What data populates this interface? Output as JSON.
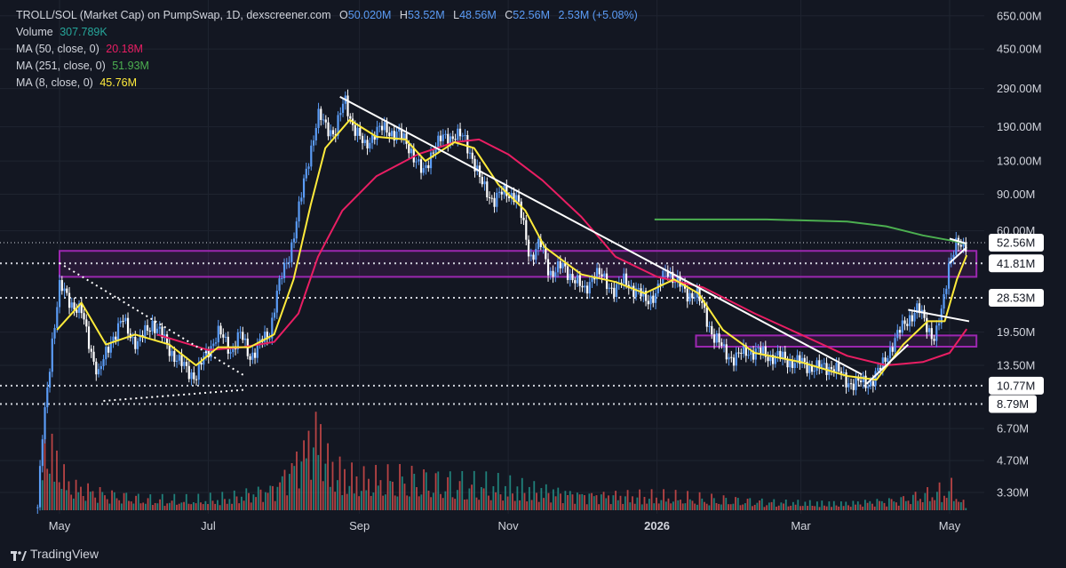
{
  "legend": {
    "title": "TROLL/SOL (Market Cap) on PumpSwap, 1D, dexscreener.com",
    "ohlc": {
      "o_label": "O",
      "o": "50.020M",
      "h_label": "H",
      "h": "53.52M",
      "l_label": "L",
      "l": "48.56M",
      "c_label": "C",
      "c": "52.56M",
      "chg": "2.53M (+5.08%)"
    },
    "volume_label": "Volume",
    "volume": "307.789K",
    "ma50_label": "MA (50, close, 0)",
    "ma50": "20.18M",
    "ma251_label": "MA (251, close, 0)",
    "ma251": "51.93M",
    "ma8_label": "MA (8, close, 0)",
    "ma8": "45.76M"
  },
  "colors": {
    "background": "#131722",
    "up": "#5b9cf6",
    "down": "#ffffff",
    "ma50": "#e91e63",
    "ma251": "#4caf50",
    "ma8": "#ffeb3b",
    "zone": "#9c27b0",
    "volume_up": "#26a69a",
    "volume_down": "#ef5350",
    "ohlc_value": "#5b9cf6"
  },
  "footer": {
    "brand": "TradingView"
  },
  "chart_data": {
    "type": "candlestick",
    "title": "TROLL/SOL (Market Cap) on PumpSwap, 1D, dexscreener.com",
    "y_scale": "log",
    "y_axis_ticks": [
      "650.00M",
      "450.00M",
      "290.00M",
      "190.00M",
      "130.00M",
      "90.00M",
      "60.00M",
      "19.50M",
      "13.50M",
      "6.70M",
      "4.70M",
      "3.30M"
    ],
    "y_axis_tick_values": [
      650,
      450,
      290,
      190,
      130,
      90,
      60,
      19.5,
      13.5,
      6.7,
      4.7,
      3.3
    ],
    "x_axis_labels": [
      {
        "label": "May",
        "date": "2025-05-01"
      },
      {
        "label": "Jul",
        "date": "2025-07-01"
      },
      {
        "label": "Sep",
        "date": "2025-09-01"
      },
      {
        "label": "Nov",
        "date": "2025-11-01"
      },
      {
        "label": "2026",
        "date": "2026-01-01",
        "bold": true
      },
      {
        "label": "Mar",
        "date": "2026-03-01"
      },
      {
        "label": "May",
        "date": "2026-05-01"
      }
    ],
    "price_tags": [
      {
        "label": "52.56M",
        "value": 52.56,
        "kind": "last"
      },
      {
        "label": "41.81M",
        "value": 41.81,
        "kind": "level"
      },
      {
        "label": "28.53M",
        "value": 28.53,
        "kind": "level"
      },
      {
        "label": "10.77M",
        "value": 10.77,
        "kind": "level"
      },
      {
        "label": "8.79M",
        "value": 8.79,
        "kind": "level"
      }
    ],
    "zones": [
      {
        "from": "2025-05-01",
        "to": "2026-05-12",
        "low": 36.0,
        "high": 48.0
      },
      {
        "from": "2026-01-17",
        "to": "2026-05-12",
        "low": 16.6,
        "high": 18.8
      }
    ],
    "price_path": [
      {
        "date": "2025-04-22",
        "value": 2.8
      },
      {
        "date": "2025-04-24",
        "value": 6.0
      },
      {
        "date": "2025-04-28",
        "value": 18.0
      },
      {
        "date": "2025-05-01",
        "value": 32.0
      },
      {
        "date": "2025-05-05",
        "value": 28.0
      },
      {
        "date": "2025-05-10",
        "value": 24.0
      },
      {
        "date": "2025-05-14",
        "value": 16.0
      },
      {
        "date": "2025-05-17",
        "value": 12.0
      },
      {
        "date": "2025-05-22",
        "value": 18.0
      },
      {
        "date": "2025-05-27",
        "value": 22.0
      },
      {
        "date": "2025-06-02",
        "value": 17.0
      },
      {
        "date": "2025-06-08",
        "value": 22.0
      },
      {
        "date": "2025-06-14",
        "value": 17.0
      },
      {
        "date": "2025-06-20",
        "value": 13.5
      },
      {
        "date": "2025-06-26",
        "value": 12.0
      },
      {
        "date": "2025-07-01",
        "value": 16.0
      },
      {
        "date": "2025-07-05",
        "value": 19.5
      },
      {
        "date": "2025-07-10",
        "value": 16.0
      },
      {
        "date": "2025-07-14",
        "value": 19.0
      },
      {
        "date": "2025-07-18",
        "value": 15.0
      },
      {
        "date": "2025-07-22",
        "value": 17.0
      },
      {
        "date": "2025-07-26",
        "value": 19.0
      },
      {
        "date": "2025-07-29",
        "value": 30.0
      },
      {
        "date": "2025-08-03",
        "value": 45.0
      },
      {
        "date": "2025-08-08",
        "value": 85.0
      },
      {
        "date": "2025-08-12",
        "value": 150.0
      },
      {
        "date": "2025-08-15",
        "value": 215.0
      },
      {
        "date": "2025-08-18",
        "value": 190.0
      },
      {
        "date": "2025-08-22",
        "value": 180.0
      },
      {
        "date": "2025-08-26",
        "value": 255.0
      },
      {
        "date": "2025-08-29",
        "value": 200.0
      },
      {
        "date": "2025-09-03",
        "value": 150.0
      },
      {
        "date": "2025-09-07",
        "value": 180.0
      },
      {
        "date": "2025-09-12",
        "value": 185.0
      },
      {
        "date": "2025-09-17",
        "value": 175.0
      },
      {
        "date": "2025-09-22",
        "value": 150.0
      },
      {
        "date": "2025-09-27",
        "value": 110.0
      },
      {
        "date": "2025-10-01",
        "value": 150.0
      },
      {
        "date": "2025-10-05",
        "value": 165.0
      },
      {
        "date": "2025-10-10",
        "value": 175.0
      },
      {
        "date": "2025-10-14",
        "value": 165.0
      },
      {
        "date": "2025-10-17",
        "value": 140.0
      },
      {
        "date": "2025-10-21",
        "value": 100.0
      },
      {
        "date": "2025-10-26",
        "value": 85.0
      },
      {
        "date": "2025-10-31",
        "value": 92.0
      },
      {
        "date": "2025-11-04",
        "value": 90.0
      },
      {
        "date": "2025-11-07",
        "value": 65.0
      },
      {
        "date": "2025-11-10",
        "value": 45.0
      },
      {
        "date": "2025-11-14",
        "value": 52.0
      },
      {
        "date": "2025-11-18",
        "value": 38.0
      },
      {
        "date": "2025-11-23",
        "value": 40.0
      },
      {
        "date": "2025-11-28",
        "value": 36.0
      },
      {
        "date": "2025-12-02",
        "value": 30.0
      },
      {
        "date": "2025-12-06",
        "value": 38.0
      },
      {
        "date": "2025-12-10",
        "value": 35.0
      },
      {
        "date": "2025-12-15",
        "value": 31.0
      },
      {
        "date": "2025-12-19",
        "value": 35.0
      },
      {
        "date": "2025-12-23",
        "value": 31.0
      },
      {
        "date": "2025-12-27",
        "value": 28.0
      },
      {
        "date": "2026-01-01",
        "value": 30.0
      },
      {
        "date": "2026-01-05",
        "value": 40.0
      },
      {
        "date": "2026-01-09",
        "value": 34.0
      },
      {
        "date": "2026-01-13",
        "value": 30.0
      },
      {
        "date": "2026-01-17",
        "value": 30.0
      },
      {
        "date": "2026-01-20",
        "value": 25.0
      },
      {
        "date": "2026-01-24",
        "value": 19.0
      },
      {
        "date": "2026-01-28",
        "value": 16.0
      },
      {
        "date": "2026-02-02",
        "value": 14.5
      },
      {
        "date": "2026-02-07",
        "value": 16.0
      },
      {
        "date": "2026-02-12",
        "value": 15.5
      },
      {
        "date": "2026-02-17",
        "value": 15.0
      },
      {
        "date": "2026-02-22",
        "value": 14.5
      },
      {
        "date": "2026-02-27",
        "value": 14.0
      },
      {
        "date": "2026-03-04",
        "value": 13.5
      },
      {
        "date": "2026-03-09",
        "value": 13.0
      },
      {
        "date": "2026-03-14",
        "value": 13.5
      },
      {
        "date": "2026-03-19",
        "value": 11.5
      },
      {
        "date": "2026-03-24",
        "value": 11.0
      },
      {
        "date": "2026-03-29",
        "value": 11.2
      },
      {
        "date": "2026-04-03",
        "value": 13.0
      },
      {
        "date": "2026-04-06",
        "value": 16.0
      },
      {
        "date": "2026-04-10",
        "value": 19.0
      },
      {
        "date": "2026-04-14",
        "value": 23.0
      },
      {
        "date": "2026-04-18",
        "value": 25.0
      },
      {
        "date": "2026-04-21",
        "value": 22.0
      },
      {
        "date": "2026-04-25",
        "value": 18.0
      },
      {
        "date": "2026-04-28",
        "value": 25.0
      },
      {
        "date": "2026-05-01",
        "value": 45.0
      },
      {
        "date": "2026-05-04",
        "value": 52.0
      },
      {
        "date": "2026-05-06",
        "value": 48.0
      },
      {
        "date": "2026-05-08",
        "value": 52.56
      }
    ],
    "ma8_path": [
      {
        "date": "2025-04-30",
        "value": 20.0
      },
      {
        "date": "2025-05-10",
        "value": 27.0
      },
      {
        "date": "2025-05-20",
        "value": 17.0
      },
      {
        "date": "2025-06-01",
        "value": 19.0
      },
      {
        "date": "2025-06-15",
        "value": 17.0
      },
      {
        "date": "2025-06-26",
        "value": 13.5
      },
      {
        "date": "2025-07-05",
        "value": 16.5
      },
      {
        "date": "2025-07-18",
        "value": 16.5
      },
      {
        "date": "2025-07-28",
        "value": 19.0
      },
      {
        "date": "2025-08-05",
        "value": 35.0
      },
      {
        "date": "2025-08-12",
        "value": 80.0
      },
      {
        "date": "2025-08-18",
        "value": 150.0
      },
      {
        "date": "2025-08-28",
        "value": 205.0
      },
      {
        "date": "2025-09-08",
        "value": 170.0
      },
      {
        "date": "2025-09-20",
        "value": 165.0
      },
      {
        "date": "2025-09-28",
        "value": 130.0
      },
      {
        "date": "2025-10-10",
        "value": 160.0
      },
      {
        "date": "2025-10-18",
        "value": 150.0
      },
      {
        "date": "2025-10-28",
        "value": 100.0
      },
      {
        "date": "2025-11-08",
        "value": 75.0
      },
      {
        "date": "2025-11-16",
        "value": 50.0
      },
      {
        "date": "2025-12-01",
        "value": 37.0
      },
      {
        "date": "2025-12-15",
        "value": 34.0
      },
      {
        "date": "2025-12-27",
        "value": 30.0
      },
      {
        "date": "2026-01-08",
        "value": 35.0
      },
      {
        "date": "2026-01-18",
        "value": 30.0
      },
      {
        "date": "2026-01-28",
        "value": 20.0
      },
      {
        "date": "2026-02-10",
        "value": 15.5
      },
      {
        "date": "2026-03-01",
        "value": 14.0
      },
      {
        "date": "2026-03-20",
        "value": 12.0
      },
      {
        "date": "2026-04-01",
        "value": 11.5
      },
      {
        "date": "2026-04-12",
        "value": 17.0
      },
      {
        "date": "2026-04-22",
        "value": 22.0
      },
      {
        "date": "2026-04-29",
        "value": 22.0
      },
      {
        "date": "2026-05-04",
        "value": 35.0
      },
      {
        "date": "2026-05-08",
        "value": 45.76
      }
    ],
    "ma50_path": [
      {
        "date": "2025-06-10",
        "value": 19.0
      },
      {
        "date": "2025-06-20",
        "value": 17.5
      },
      {
        "date": "2025-07-01",
        "value": 16.0
      },
      {
        "date": "2025-07-15",
        "value": 16.5
      },
      {
        "date": "2025-07-28",
        "value": 17.5
      },
      {
        "date": "2025-08-07",
        "value": 24.0
      },
      {
        "date": "2025-08-15",
        "value": 45.0
      },
      {
        "date": "2025-08-25",
        "value": 75.0
      },
      {
        "date": "2025-09-08",
        "value": 110.0
      },
      {
        "date": "2025-09-25",
        "value": 140.0
      },
      {
        "date": "2025-10-10",
        "value": 160.0
      },
      {
        "date": "2025-10-20",
        "value": 165.0
      },
      {
        "date": "2025-11-01",
        "value": 140.0
      },
      {
        "date": "2025-11-15",
        "value": 105.0
      },
      {
        "date": "2025-12-01",
        "value": 70.0
      },
      {
        "date": "2025-12-15",
        "value": 45.0
      },
      {
        "date": "2026-01-01",
        "value": 36.0
      },
      {
        "date": "2026-01-20",
        "value": 32.0
      },
      {
        "date": "2026-02-10",
        "value": 24.0
      },
      {
        "date": "2026-03-01",
        "value": 19.0
      },
      {
        "date": "2026-03-20",
        "value": 15.0
      },
      {
        "date": "2026-04-05",
        "value": 13.5
      },
      {
        "date": "2026-04-20",
        "value": 14.0
      },
      {
        "date": "2026-05-01",
        "value": 15.5
      },
      {
        "date": "2026-05-08",
        "value": 20.18
      }
    ],
    "ma251_path": [
      {
        "date": "2025-12-31",
        "value": 68.0
      },
      {
        "date": "2026-02-15",
        "value": 68.0
      },
      {
        "date": "2026-03-20",
        "value": 66.5
      },
      {
        "date": "2026-04-05",
        "value": 63.0
      },
      {
        "date": "2026-04-20",
        "value": 57.0
      },
      {
        "date": "2026-05-01",
        "value": 54.0
      },
      {
        "date": "2026-05-08",
        "value": 51.93
      }
    ],
    "drawings": [
      {
        "kind": "trendline",
        "from": {
          "date": "2025-08-24",
          "value": 265
        },
        "to": {
          "date": "2026-03-26",
          "value": 12.2
        }
      },
      {
        "kind": "dotted",
        "from": {
          "date": "2025-05-01",
          "value": 42.0
        },
        "to": {
          "date": "2025-07-16",
          "value": 12.0
        }
      },
      {
        "kind": "dotted",
        "from": {
          "date": "2025-05-19",
          "value": 9.1
        },
        "to": {
          "date": "2025-07-16",
          "value": 10.3
        }
      },
      {
        "kind": "trendline",
        "from": {
          "date": "2026-03-28",
          "value": 11.0
        },
        "to": {
          "date": "2026-04-14",
          "value": 17.0
        }
      },
      {
        "kind": "trendline",
        "from": {
          "date": "2026-04-14",
          "value": 25.0
        },
        "to": {
          "date": "2026-05-09",
          "value": 22.0
        }
      },
      {
        "kind": "trendline",
        "from": {
          "date": "2026-05-01",
          "value": 55.0
        },
        "to": {
          "date": "2026-05-08",
          "value": 52.0
        }
      },
      {
        "kind": "trendline",
        "from": {
          "date": "2026-05-01",
          "value": 42.0
        },
        "to": {
          "date": "2026-05-08",
          "value": 50.0
        }
      }
    ],
    "volume_series_K": [
      {
        "date": "2025-04-24",
        "value": 9000
      },
      {
        "date": "2025-05-05",
        "value": 2800
      },
      {
        "date": "2025-05-20",
        "value": 1900
      },
      {
        "date": "2025-06-05",
        "value": 1300
      },
      {
        "date": "2025-06-25",
        "value": 1200
      },
      {
        "date": "2025-07-10",
        "value": 1500
      },
      {
        "date": "2025-07-28",
        "value": 2500
      },
      {
        "date": "2025-08-08",
        "value": 6400
      },
      {
        "date": "2025-08-15",
        "value": 9500
      },
      {
        "date": "2025-08-20",
        "value": 5000
      },
      {
        "date": "2025-09-01",
        "value": 3500
      },
      {
        "date": "2025-09-20",
        "value": 3800
      },
      {
        "date": "2025-10-10",
        "value": 3200
      },
      {
        "date": "2025-10-25",
        "value": 3000
      },
      {
        "date": "2025-11-10",
        "value": 2500
      },
      {
        "date": "2025-12-01",
        "value": 1800
      },
      {
        "date": "2026-01-05",
        "value": 1600
      },
      {
        "date": "2026-01-25",
        "value": 1300
      },
      {
        "date": "2026-02-20",
        "value": 900
      },
      {
        "date": "2026-03-20",
        "value": 800
      },
      {
        "date": "2026-04-10",
        "value": 1200
      },
      {
        "date": "2026-05-02",
        "value": 2500
      },
      {
        "date": "2026-05-08",
        "value": 307.789
      }
    ]
  }
}
